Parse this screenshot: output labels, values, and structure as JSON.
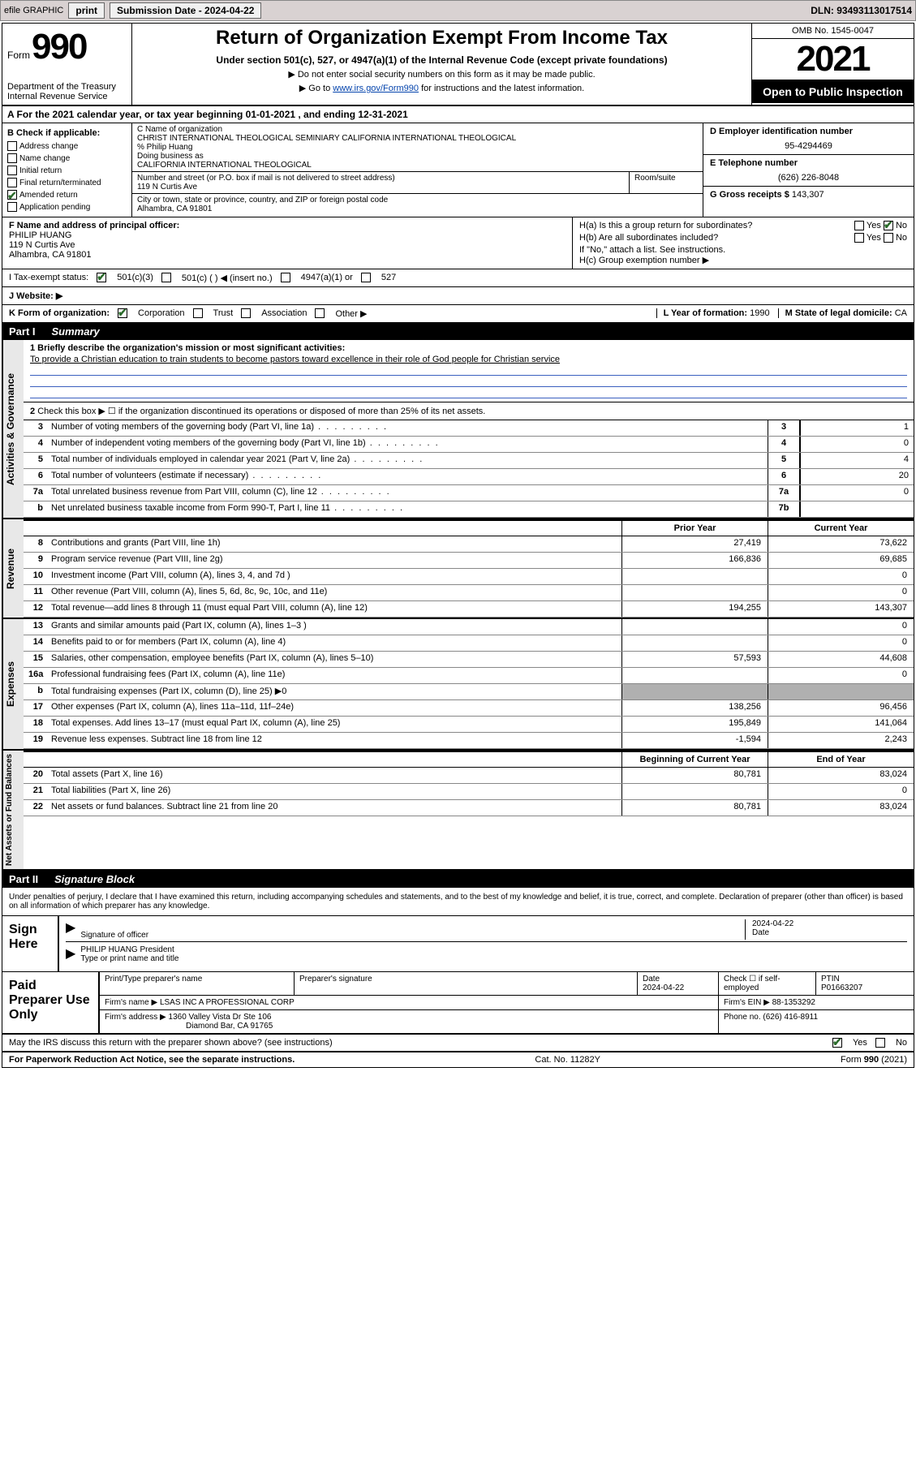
{
  "topbar": {
    "efile_label": "efile GRAPHIC",
    "print_btn": "print",
    "submission_label": "Submission Date - 2024-04-22",
    "dln_label": "DLN: 93493113017514"
  },
  "header": {
    "form_word": "Form",
    "form_number": "990",
    "dept": "Department of the Treasury",
    "irs": "Internal Revenue Service",
    "title": "Return of Organization Exempt From Income Tax",
    "sub1": "Under section 501(c), 527, or 4947(a)(1) of the Internal Revenue Code (except private foundations)",
    "sub2": "▶ Do not enter social security numbers on this form as it may be made public.",
    "sub3_pre": "▶ Go to ",
    "sub3_link": "www.irs.gov/Form990",
    "sub3_post": " for instructions and the latest information.",
    "omb": "OMB No. 1545-0047",
    "year": "2021",
    "inspect": "Open to Public Inspection"
  },
  "line_a": "A For the 2021 calendar year, or tax year beginning 01-01-2021     , and ending 12-31-2021",
  "box_b": {
    "header": "B Check if applicable:",
    "opts": [
      "Address change",
      "Name change",
      "Initial return",
      "Final return/terminated",
      "Amended return",
      "Application pending"
    ],
    "checked_idx": 4
  },
  "box_c": {
    "nameorg_label": "C Name of organization",
    "nameorg": "CHRIST INTERNATIONAL THEOLOGICAL SEMINIARY CALIFORNIA INTERNATIONAL THEOLOGICAL",
    "care_of": "% Philip Huang",
    "dba_label": "Doing business as",
    "dba": "CALIFORNIA INTERNATIONAL THEOLOGICAL",
    "street_label": "Number and street (or P.O. box if mail is not delivered to street address)",
    "street": "119 N Curtis Ave",
    "room_label": "Room/suite",
    "city_label": "City or town, state or province, country, and ZIP or foreign postal code",
    "city": "Alhambra, CA  91801"
  },
  "box_d": {
    "label": "D Employer identification number",
    "value": "95-4294469"
  },
  "box_e": {
    "label": "E Telephone number",
    "value": "(626) 226-8048"
  },
  "box_g": {
    "label": "G Gross receipts $",
    "value": "143,307"
  },
  "box_f": {
    "label": "F  Name and address of principal officer:",
    "name": "PHILIP HUANG",
    "addr1": "119 N Curtis Ave",
    "addr2": "Alhambra, CA  91801"
  },
  "box_h": {
    "a": "H(a)  Is this a group return for subordinates?",
    "a_yes": "Yes",
    "a_no": "No",
    "b": "H(b)  Are all subordinates included?",
    "b_yes": "Yes",
    "b_no": "No",
    "b_note": "If \"No,\" attach a list. See instructions.",
    "c": "H(c)  Group exemption number ▶"
  },
  "line_i": {
    "label": "I   Tax-exempt status:",
    "o1": "501(c)(3)",
    "o2": "501(c) (   ) ◀ (insert no.)",
    "o3": "4947(a)(1) or",
    "o4": "527"
  },
  "line_j": {
    "label": "J   Website: ▶"
  },
  "line_k": {
    "label": "K Form of organization:",
    "o1": "Corporation",
    "o2": "Trust",
    "o3": "Association",
    "o4": "Other ▶"
  },
  "line_l": {
    "label": "L Year of formation:",
    "value": "1990"
  },
  "line_m": {
    "label": "M State of legal domicile:",
    "value": "CA"
  },
  "part1": {
    "num": "Part I",
    "title": "Summary"
  },
  "activities": {
    "vert": "Activities & Governance",
    "q1_label": "1   Briefly describe the organization's mission or most significant activities:",
    "q1_ans": "To provide a Christian education to train students to become pastors toward excellence in their role of God people for Christian service",
    "q2": "Check this box ▶ ☐  if the organization discontinued its operations or disposed of more than 25% of its net assets.",
    "rows": [
      {
        "n": "3",
        "t": "Number of voting members of the governing body (Part VI, line 1a)",
        "box": "3",
        "v": "1"
      },
      {
        "n": "4",
        "t": "Number of independent voting members of the governing body (Part VI, line 1b)",
        "box": "4",
        "v": "0"
      },
      {
        "n": "5",
        "t": "Total number of individuals employed in calendar year 2021 (Part V, line 2a)",
        "box": "5",
        "v": "4"
      },
      {
        "n": "6",
        "t": "Total number of volunteers (estimate if necessary)",
        "box": "6",
        "v": "20"
      },
      {
        "n": "7a",
        "t": "Total unrelated business revenue from Part VIII, column (C), line 12",
        "box": "7a",
        "v": "0"
      },
      {
        "n": "b",
        "t": "Net unrelated business taxable income from Form 990-T, Part I, line 11",
        "box": "7b",
        "v": ""
      }
    ]
  },
  "col_headers": {
    "prior": "Prior Year",
    "current": "Current Year"
  },
  "revenue": {
    "vert": "Revenue",
    "rows": [
      {
        "n": "8",
        "t": "Contributions and grants (Part VIII, line 1h)",
        "p": "27,419",
        "c": "73,622"
      },
      {
        "n": "9",
        "t": "Program service revenue (Part VIII, line 2g)",
        "p": "166,836",
        "c": "69,685"
      },
      {
        "n": "10",
        "t": "Investment income (Part VIII, column (A), lines 3, 4, and 7d )",
        "p": "",
        "c": "0"
      },
      {
        "n": "11",
        "t": "Other revenue (Part VIII, column (A), lines 5, 6d, 8c, 9c, 10c, and 11e)",
        "p": "",
        "c": "0"
      },
      {
        "n": "12",
        "t": "Total revenue—add lines 8 through 11 (must equal Part VIII, column (A), line 12)",
        "p": "194,255",
        "c": "143,307"
      }
    ]
  },
  "expenses": {
    "vert": "Expenses",
    "rows": [
      {
        "n": "13",
        "t": "Grants and similar amounts paid (Part IX, column (A), lines 1–3 )",
        "p": "",
        "c": "0"
      },
      {
        "n": "14",
        "t": "Benefits paid to or for members (Part IX, column (A), line 4)",
        "p": "",
        "c": "0"
      },
      {
        "n": "15",
        "t": "Salaries, other compensation, employee benefits (Part IX, column (A), lines 5–10)",
        "p": "57,593",
        "c": "44,608"
      },
      {
        "n": "16a",
        "t": "Professional fundraising fees (Part IX, column (A), line 11e)",
        "p": "",
        "c": "0"
      },
      {
        "n": "b",
        "t": "Total fundraising expenses (Part IX, column (D), line 25) ▶0",
        "p": "grey",
        "c": "grey"
      },
      {
        "n": "17",
        "t": "Other expenses (Part IX, column (A), lines 11a–11d, 11f–24e)",
        "p": "138,256",
        "c": "96,456"
      },
      {
        "n": "18",
        "t": "Total expenses. Add lines 13–17 (must equal Part IX, column (A), line 25)",
        "p": "195,849",
        "c": "141,064"
      },
      {
        "n": "19",
        "t": "Revenue less expenses. Subtract line 18 from line 12",
        "p": "-1,594",
        "c": "2,243"
      }
    ]
  },
  "netassets": {
    "vert": "Net Assets or Fund Balances",
    "h1": "Beginning of Current Year",
    "h2": "End of Year",
    "rows": [
      {
        "n": "20",
        "t": "Total assets (Part X, line 16)",
        "p": "80,781",
        "c": "83,024"
      },
      {
        "n": "21",
        "t": "Total liabilities (Part X, line 26)",
        "p": "",
        "c": "0"
      },
      {
        "n": "22",
        "t": "Net assets or fund balances. Subtract line 21 from line 20",
        "p": "80,781",
        "c": "83,024"
      }
    ]
  },
  "part2": {
    "num": "Part II",
    "title": "Signature Block"
  },
  "penalty": "Under penalties of perjury, I declare that I have examined this return, including accompanying schedules and statements, and to the best of my knowledge and belief, it is true, correct, and complete. Declaration of preparer (other than officer) is based on all information of which preparer has any knowledge.",
  "sign": {
    "left": "Sign Here",
    "sig_label": "Signature of officer",
    "date": "2024-04-22",
    "date_label": "Date",
    "name": "PHILIP HUANG President",
    "name_label": "Type or print name and title"
  },
  "prep": {
    "left": "Paid Preparer Use Only",
    "h1": "Print/Type preparer's name",
    "h2": "Preparer's signature",
    "h3": "Date",
    "h3v": "2024-04-22",
    "h4": "Check ☐ if self-employed",
    "h5": "PTIN",
    "h5v": "P01663207",
    "firm_label": "Firm's name    ▶",
    "firm": "LSAS INC A PROFESSIONAL CORP",
    "ein_label": "Firm's EIN ▶",
    "ein": "88-1353292",
    "addr_label": "Firm's address ▶",
    "addr1": "1360 Valley Vista Dr Ste 106",
    "addr2": "Diamond Bar, CA  91765",
    "phone_label": "Phone no.",
    "phone": "(626) 416-8911"
  },
  "discuss": {
    "q": "May the IRS discuss this return with the preparer shown above? (see instructions)",
    "yes": "Yes",
    "no": "No"
  },
  "footer": {
    "left": "For Paperwork Reduction Act Notice, see the separate instructions.",
    "mid": "Cat. No. 11282Y",
    "right": "Form 990 (2021)"
  }
}
